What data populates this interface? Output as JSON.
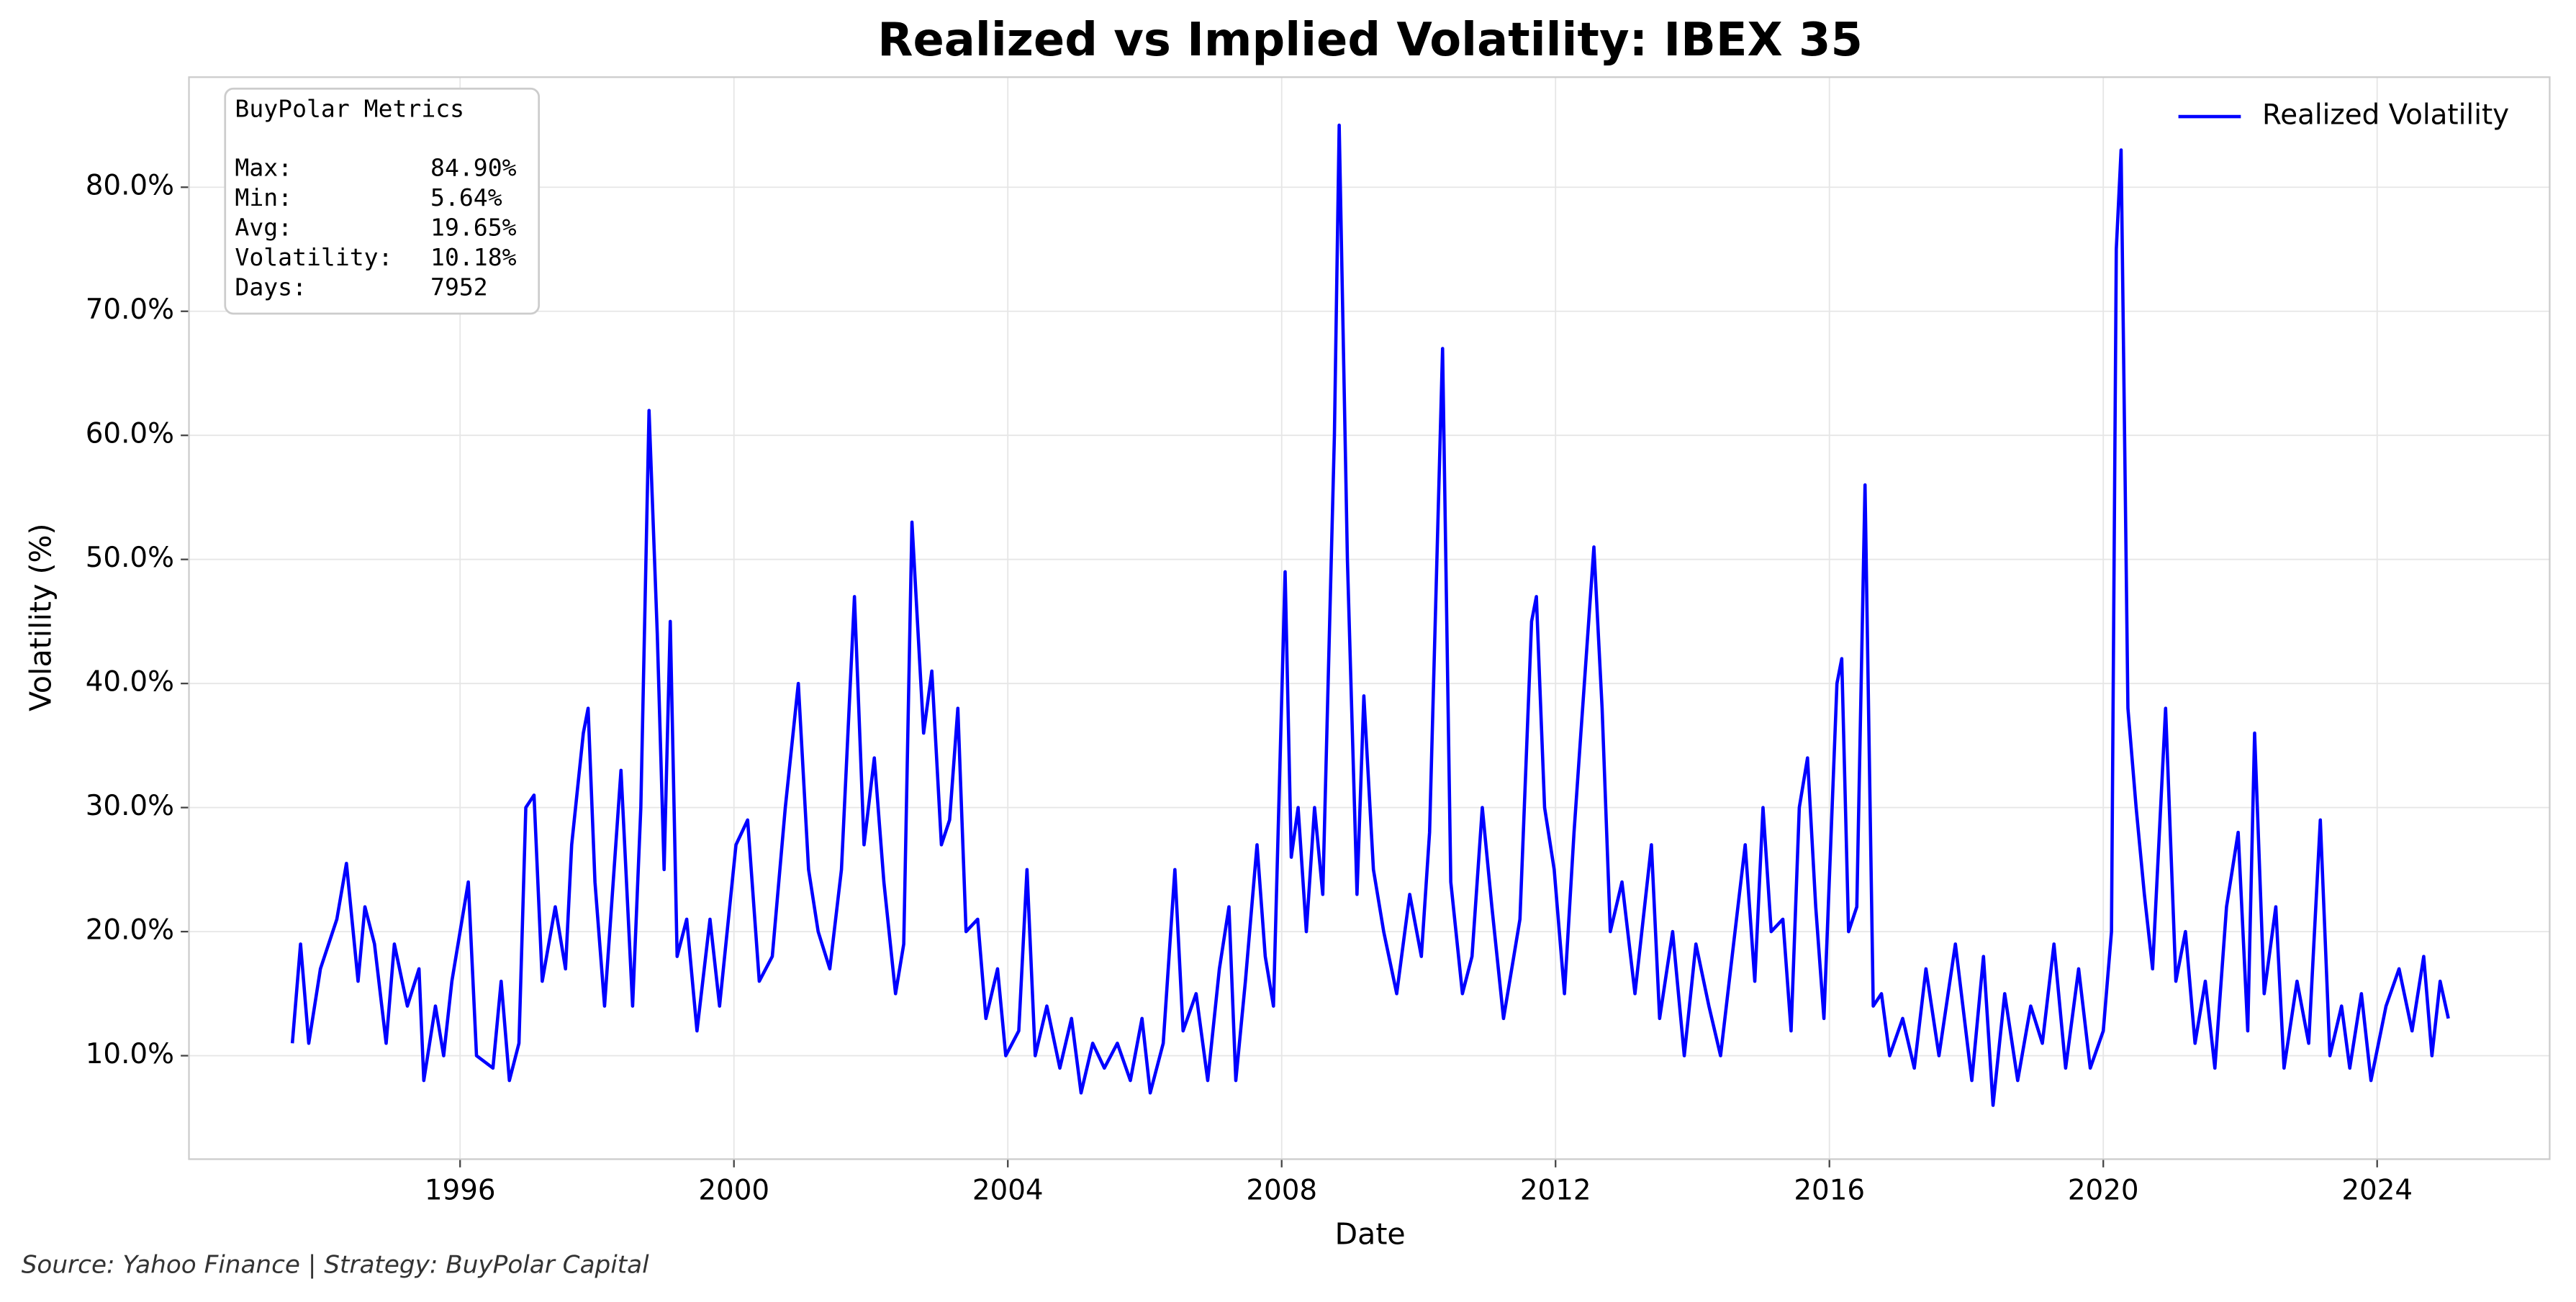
{
  "chart_data": {
    "type": "line",
    "title": "Realized vs Implied Volatility: IBEX 35",
    "xlabel": "Date",
    "ylabel": "Volatility (%)",
    "source_note": "Source: Yahoo Finance | Strategy: BuyPolar Capital",
    "grid": true,
    "legend": "upper right",
    "stats_box": {
      "title": "BuyPolar Metrics",
      "rows": [
        [
          "Max:",
          "84.90%"
        ],
        [
          "Min:",
          "5.64%"
        ],
        [
          "Avg:",
          "19.65%"
        ],
        [
          "Volatility:",
          "10.18%"
        ],
        [
          "Days:",
          "7952"
        ]
      ]
    },
    "xlim": [
      1992.04,
      2026.52
    ],
    "xticks": [
      1996,
      2000,
      2004,
      2008,
      2012,
      2016,
      2020,
      2024
    ],
    "ylim": [
      1.66,
      88.87
    ],
    "yticks": [
      {
        "value": 10,
        "label": "10.0%"
      },
      {
        "value": 20,
        "label": "20.0%"
      },
      {
        "value": 30,
        "label": "30.0%"
      },
      {
        "value": 40,
        "label": "40.0%"
      },
      {
        "value": 50,
        "label": "50.0%"
      },
      {
        "value": 60,
        "label": "60.0%"
      },
      {
        "value": 70,
        "label": "70.0%"
      },
      {
        "value": 80,
        "label": "80.0%"
      }
    ],
    "x": [
      1993.55,
      1993.67,
      1993.79,
      1993.96,
      1994.2,
      1994.34,
      1994.51,
      1994.61,
      1994.75,
      1994.92,
      1995.04,
      1995.23,
      1995.4,
      1995.47,
      1995.64,
      1995.76,
      1995.88,
      1996.12,
      1996.24,
      1996.48,
      1996.6,
      1996.72,
      1996.86,
      1996.96,
      1997.08,
      1997.2,
      1997.39,
      1997.54,
      1997.63,
      1997.8,
      1997.87,
      1997.97,
      1998.11,
      1998.35,
      1998.52,
      1998.64,
      1998.76,
      1998.88,
      1998.98,
      1999.07,
      1999.17,
      1999.31,
      1999.46,
      1999.65,
      1999.79,
      2000.03,
      2000.2,
      2000.37,
      2000.56,
      2000.75,
      2000.94,
      2001.09,
      2001.23,
      2001.4,
      2001.57,
      2001.76,
      2001.9,
      2002.05,
      2002.19,
      2002.36,
      2002.48,
      2002.6,
      2002.77,
      2002.89,
      2003.03,
      2003.15,
      2003.27,
      2003.39,
      2003.56,
      2003.68,
      2003.85,
      2003.97,
      2004.16,
      2004.28,
      2004.4,
      2004.57,
      2004.76,
      2004.93,
      2005.07,
      2005.24,
      2005.41,
      2005.6,
      2005.79,
      2005.96,
      2006.08,
      2006.27,
      2006.44,
      2006.56,
      2006.75,
      2006.92,
      2007.09,
      2007.23,
      2007.33,
      2007.47,
      2007.64,
      2007.76,
      2007.88,
      2008.05,
      2008.14,
      2008.24,
      2008.36,
      2008.48,
      2008.6,
      2008.77,
      2008.84,
      2008.96,
      2009.1,
      2009.2,
      2009.34,
      2009.49,
      2009.68,
      2009.87,
      2010.04,
      2010.16,
      2010.35,
      2010.47,
      2010.64,
      2010.78,
      2010.93,
      2011.07,
      2011.24,
      2011.48,
      2011.65,
      2011.72,
      2011.84,
      2011.98,
      2012.13,
      2012.27,
      2012.37,
      2012.56,
      2012.68,
      2012.8,
      2012.97,
      2013.16,
      2013.4,
      2013.52,
      2013.71,
      2013.88,
      2014.05,
      2014.24,
      2014.41,
      2014.6,
      2014.77,
      2014.91,
      2015.03,
      2015.15,
      2015.32,
      2015.44,
      2015.56,
      2015.68,
      2015.8,
      2015.92,
      2016.11,
      2016.18,
      2016.28,
      2016.4,
      2016.52,
      2016.64,
      2016.76,
      2016.88,
      2017.07,
      2017.24,
      2017.41,
      2017.6,
      2017.84,
      2018.08,
      2018.25,
      2018.39,
      2018.56,
      2018.75,
      2018.94,
      2019.11,
      2019.28,
      2019.45,
      2019.64,
      2019.81,
      2020.0,
      2020.12,
      2020.19,
      2020.26,
      2020.36,
      2020.48,
      2020.6,
      2020.72,
      2020.91,
      2021.06,
      2021.2,
      2021.34,
      2021.49,
      2021.63,
      2021.8,
      2021.97,
      2022.11,
      2022.21,
      2022.35,
      2022.52,
      2022.64,
      2022.83,
      2023.0,
      2023.17,
      2023.31,
      2023.48,
      2023.6,
      2023.77,
      2023.91,
      2024.13,
      2024.32,
      2024.51,
      2024.68,
      2024.8,
      2024.92,
      2025.04
    ],
    "series": [
      {
        "name": "Realized Volatility",
        "color": "#0000ff",
        "values": [
          11,
          19,
          11,
          17,
          21,
          25.5,
          16,
          22,
          19,
          11,
          19,
          14,
          17,
          8,
          14,
          10,
          16,
          24,
          10,
          9,
          16,
          8,
          11,
          30,
          31,
          16,
          22,
          17,
          27,
          36,
          38,
          24,
          14,
          33,
          14,
          30,
          62,
          44,
          25,
          45,
          18,
          21,
          12,
          21,
          14,
          27,
          29,
          16,
          18,
          30,
          40,
          25,
          20,
          17,
          25,
          47,
          27,
          34,
          24,
          15,
          19,
          53,
          36,
          41,
          27,
          29,
          38,
          20,
          21,
          13,
          17,
          10,
          12,
          25,
          10,
          14,
          9,
          13,
          7,
          11,
          9,
          11,
          8,
          13,
          7,
          11,
          25,
          12,
          15,
          8,
          17,
          22,
          8,
          16,
          27,
          18,
          14,
          49,
          26,
          30,
          20,
          30,
          23,
          60,
          85,
          50,
          23,
          39,
          25,
          20,
          15,
          23,
          18,
          28,
          67,
          24,
          15,
          18,
          30,
          22,
          13,
          21,
          45,
          47,
          30,
          25,
          15,
          28,
          36,
          51,
          38,
          20,
          24,
          15,
          27,
          13,
          20,
          10,
          19,
          14,
          10,
          19,
          27,
          16,
          30,
          20,
          21,
          12,
          30,
          34,
          22,
          13,
          40,
          42,
          20,
          22,
          56,
          14,
          15,
          10,
          13,
          9,
          17,
          10,
          19,
          8,
          18,
          6,
          15,
          8,
          14,
          11,
          19,
          9,
          17,
          9,
          12,
          20,
          75,
          83,
          38,
          30,
          23,
          17,
          38,
          16,
          20,
          11,
          16,
          9,
          22,
          28,
          12,
          36,
          15,
          22,
          9,
          16,
          11,
          29,
          10,
          14,
          9,
          15,
          8,
          14,
          17,
          12,
          18,
          10,
          16,
          13
        ]
      }
    ]
  }
}
